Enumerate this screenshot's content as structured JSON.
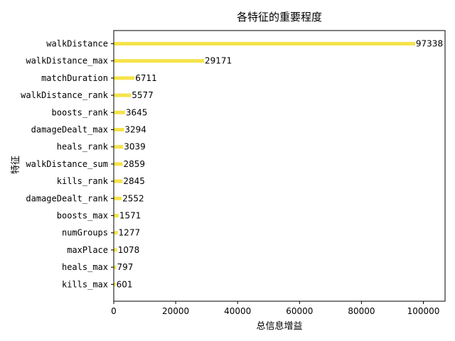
{
  "chart_data": {
    "type": "bar",
    "orientation": "horizontal",
    "title": "各特征的重要程度",
    "xlabel": "总信息增益",
    "ylabel": "特征",
    "xlim": [
      0,
      107000
    ],
    "xticks": [
      0,
      20000,
      40000,
      60000,
      80000,
      100000
    ],
    "xtick_labels": [
      "0",
      "20000",
      "40000",
      "60000",
      "80000",
      "100000"
    ],
    "categories": [
      "walkDistance",
      "walkDistance_max",
      "matchDuration",
      "walkDistance_rank",
      "boosts_rank",
      "damageDealt_max",
      "heals_rank",
      "walkDistance_sum",
      "kills_rank",
      "damageDealt_rank",
      "boosts_max",
      "numGroups",
      "maxPlace",
      "heals_max",
      "kills_max"
    ],
    "values": [
      97338,
      29171,
      6711,
      5577,
      3645,
      3294,
      3039,
      2859,
      2845,
      2552,
      1571,
      1277,
      1078,
      797,
      601
    ],
    "bar_color": "#f5e34a",
    "grid": false,
    "legend": "none"
  }
}
